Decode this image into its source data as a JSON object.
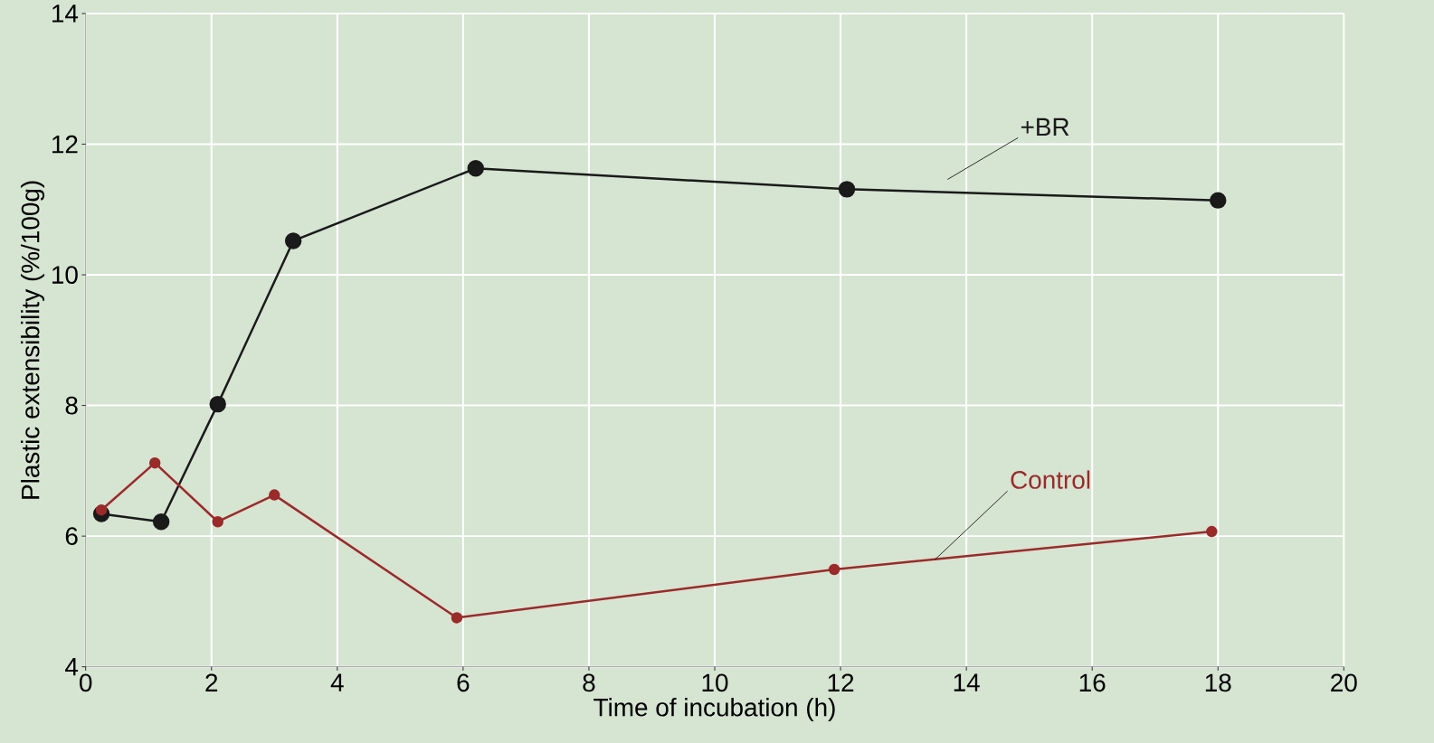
{
  "chart_data": {
    "type": "line",
    "xlabel": "Time of incubation (h)",
    "ylabel": "Plastic extensibility (%/100g)",
    "xlim": [
      0,
      20
    ],
    "ylim": [
      4,
      14
    ],
    "xticks": [
      0,
      2,
      4,
      6,
      8,
      10,
      12,
      14,
      16,
      18,
      20
    ],
    "yticks": [
      4,
      6,
      8,
      10,
      12,
      14
    ],
    "grid": true,
    "legend": false,
    "marker": "circle",
    "line_style": "solid",
    "series": [
      {
        "name": "+BR",
        "color": "#1a1a1a",
        "x": [
          0.25,
          1.2,
          2.1,
          3.3,
          6.2,
          12.1,
          18
        ],
        "values": [
          6.34,
          6.22,
          8.02,
          10.52,
          11.63,
          11.31,
          11.14
        ]
      },
      {
        "name": "Control",
        "color": "#9b2a2a",
        "x": [
          0.25,
          1.1,
          2.1,
          3.0,
          5.9,
          11.9,
          17.9
        ],
        "values": [
          6.4,
          7.12,
          6.22,
          6.63,
          4.75,
          5.49,
          6.07
        ]
      }
    ]
  }
}
